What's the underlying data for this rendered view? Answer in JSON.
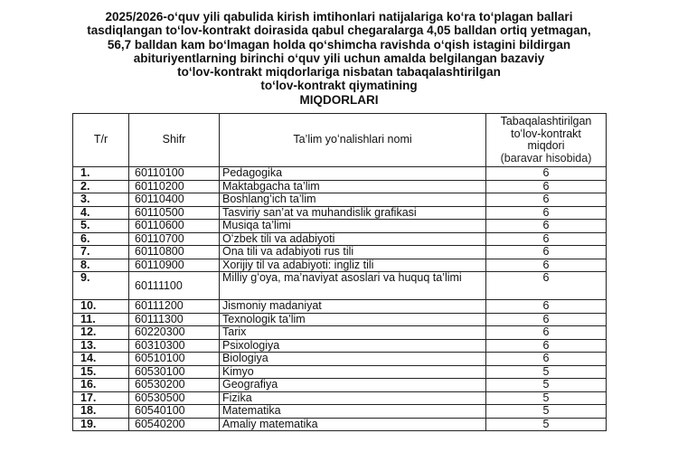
{
  "title_lines": [
    "2025/2026-oʻquv yili qabulida kirish imtihonlari natijalariga koʻra toʻplagan ballari",
    "tasdiqlangan toʻlov-kontrakt doirasida qabul chegaralarga 4,05 balldan ortiq yetmagan,",
    "56,7 balldan kam boʻlmagan holda qoʻshimcha ravishda oʻqish istagini bildirgan",
    "abituriyentlarning birinchi oʻquv yili uchun amalda belgilangan bazaviy",
    "toʻlov-kontrakt miqdorlariga nisbatan tabaqalashtirilgan",
    "toʻlov-kontrakt qiymatining",
    "MIQDORLARI"
  ],
  "table": {
    "headers": {
      "num": "T/r",
      "code": "Shifr",
      "name": "Ta’lim yoʻnalishlari nomi",
      "value_line1": "Tabaqalashtirilgan",
      "value_line2": "toʻlov-kontrakt",
      "value_line3": "miqdori",
      "value_line4": "(baravar hisobida)"
    },
    "rows": [
      {
        "num": "1.",
        "code": "60110100",
        "name": "Pedagogika",
        "value": "6"
      },
      {
        "num": "2.",
        "code": "60110200",
        "name": "Maktabgacha ta’lim",
        "value": "6"
      },
      {
        "num": "3.",
        "code": "60110400",
        "name": "Boshlangʻich ta’lim",
        "value": "6"
      },
      {
        "num": "4.",
        "code": "60110500",
        "name": "Tasviriy san’at va muhandislik grafikasi",
        "value": "6"
      },
      {
        "num": "5.",
        "code": "60110600",
        "name": "Musiqa ta’limi",
        "value": "6"
      },
      {
        "num": "6.",
        "code": "60110700",
        "name": "Oʻzbek tili va adabiyoti",
        "value": "6"
      },
      {
        "num": "7.",
        "code": "60110800",
        "name": "Ona tili va adabiyoti rus tili",
        "value": "6"
      },
      {
        "num": "8.",
        "code": "60110900",
        "name": "Xorijiy til va adabiyoti: ingliz tili",
        "value": "6"
      },
      {
        "num": "9.",
        "code": "60111100",
        "name": "Milliy gʻoya, ma’naviyat asoslari va huquq ta’limi",
        "value": "6"
      },
      {
        "num": "10.",
        "code": "60111200",
        "name": "Jismoniy madaniyat",
        "value": "6"
      },
      {
        "num": "11.",
        "code": "60111300",
        "name": "Texnologik ta’lim",
        "value": "6"
      },
      {
        "num": "12.",
        "code": "60220300",
        "name": "Tarix",
        "value": "6"
      },
      {
        "num": "13.",
        "code": "60310300",
        "name": "Psixologiya",
        "value": "6"
      },
      {
        "num": "14.",
        "code": "60510100",
        "name": "Biologiya",
        "value": "6"
      },
      {
        "num": "15.",
        "code": "60530100",
        "name": "Kimyo",
        "value": "5"
      },
      {
        "num": "16.",
        "code": "60530200",
        "name": "Geografiya",
        "value": "5"
      },
      {
        "num": "17.",
        "code": "60530500",
        "name": "Fizika",
        "value": "5"
      },
      {
        "num": "18.",
        "code": "60540100",
        "name": "Matematika",
        "value": "5"
      },
      {
        "num": "19.",
        "code": "60540200",
        "name": "Amaliy matematika",
        "value": "5"
      }
    ]
  }
}
